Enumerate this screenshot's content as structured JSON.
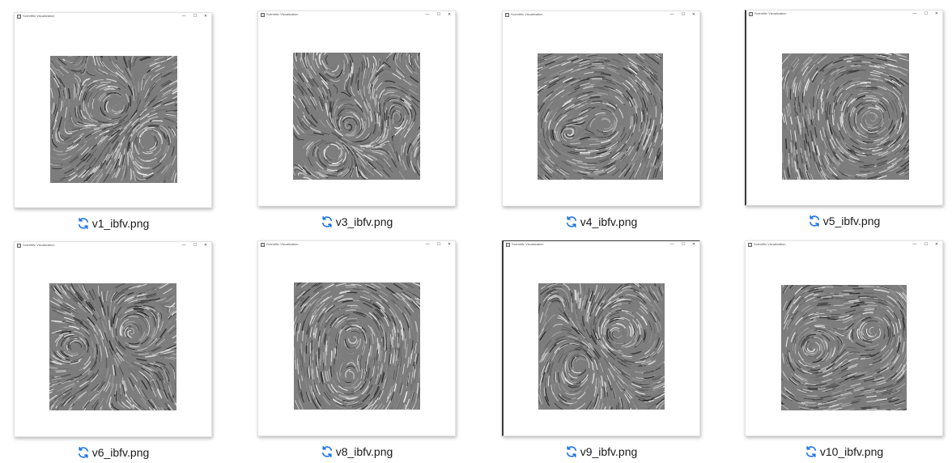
{
  "window": {
    "title": "Scientific Visualization",
    "controls": {
      "minimize": "—",
      "maximize": "☐",
      "close": "✕"
    }
  },
  "icons": {
    "status": "sync-icon",
    "status_color": "#1a73e8"
  },
  "files": [
    {
      "name": "v1_ibfv.png"
    },
    {
      "name": "v3_ibfv.png"
    },
    {
      "name": "v4_ibfv.png"
    },
    {
      "name": "v5_ibfv.png"
    },
    {
      "name": "v6_ibfv.png"
    },
    {
      "name": "v8_ibfv.png"
    },
    {
      "name": "v9_ibfv.png"
    },
    {
      "name": "v10_ibfv.png"
    }
  ]
}
